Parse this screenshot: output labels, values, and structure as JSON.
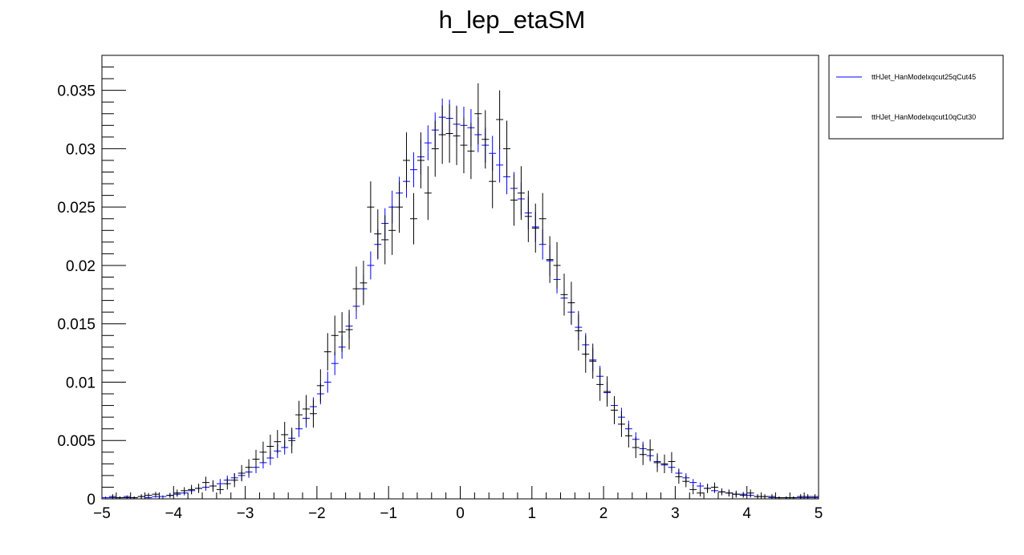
{
  "chart_data": {
    "type": "scatter",
    "title": "h_lep_etaSM",
    "xlabel": "",
    "ylabel": "",
    "xlim": [
      -5,
      5
    ],
    "ylim": [
      0,
      0.038
    ],
    "x_ticks": [
      -5,
      -4,
      -3,
      -2,
      -1,
      0,
      1,
      2,
      3,
      4,
      5
    ],
    "x_tick_labels": [
      "−5",
      "−4",
      "−3",
      "−2",
      "−1",
      "0",
      "1",
      "2",
      "3",
      "4",
      "5"
    ],
    "y_ticks": [
      0,
      0.005,
      0.01,
      0.015,
      0.02,
      0.025,
      0.03,
      0.035
    ],
    "y_tick_labels": [
      "0",
      "0.005",
      "0.01",
      "0.015",
      "0.02",
      "0.025",
      "0.03",
      "0.035"
    ],
    "bin_width": 0.1,
    "grid": false,
    "legend_position": "outside-top-right",
    "series": [
      {
        "name": "ttHJet_HanModelxqcut25qCut45",
        "color": "#0000ff",
        "x": [
          -4.95,
          -4.85,
          -4.75,
          -4.65,
          -4.55,
          -4.45,
          -4.35,
          -4.25,
          -4.15,
          -4.05,
          -3.95,
          -3.85,
          -3.75,
          -3.65,
          -3.55,
          -3.45,
          -3.35,
          -3.25,
          -3.15,
          -3.05,
          -2.95,
          -2.85,
          -2.75,
          -2.65,
          -2.55,
          -2.45,
          -2.35,
          -2.25,
          -2.15,
          -2.05,
          -1.95,
          -1.85,
          -1.75,
          -1.65,
          -1.55,
          -1.45,
          -1.35,
          -1.25,
          -1.15,
          -1.05,
          -0.95,
          -0.85,
          -0.75,
          -0.65,
          -0.55,
          -0.45,
          -0.35,
          -0.25,
          -0.15,
          -0.05,
          0.05,
          0.15,
          0.25,
          0.35,
          0.45,
          0.55,
          0.65,
          0.75,
          0.85,
          0.95,
          1.05,
          1.15,
          1.25,
          1.35,
          1.45,
          1.55,
          1.65,
          1.75,
          1.85,
          1.95,
          2.05,
          2.15,
          2.25,
          2.35,
          2.45,
          2.55,
          2.65,
          2.75,
          2.85,
          2.95,
          3.05,
          3.15,
          3.25,
          3.35,
          3.45,
          3.55,
          3.65,
          3.75,
          3.85,
          3.95,
          4.05,
          4.15,
          4.25,
          4.35,
          4.45,
          4.55,
          4.65,
          4.75,
          4.85,
          4.95
        ],
        "y": [
          0.0001,
          0.0001,
          0.0001,
          0.0002,
          0.0001,
          0.0002,
          0.0001,
          0.0002,
          0.0002,
          0.0003,
          0.0004,
          0.0005,
          0.0007,
          0.0009,
          0.001,
          0.0011,
          0.0013,
          0.0016,
          0.0018,
          0.002,
          0.0023,
          0.0027,
          0.0031,
          0.0035,
          0.0041,
          0.0044,
          0.0052,
          0.006,
          0.0069,
          0.0079,
          0.009,
          0.01,
          0.0116,
          0.013,
          0.0148,
          0.0165,
          0.018,
          0.02,
          0.0218,
          0.0236,
          0.025,
          0.0262,
          0.0272,
          0.0282,
          0.0293,
          0.0305,
          0.0316,
          0.0327,
          0.0326,
          0.0321,
          0.032,
          0.0318,
          0.0312,
          0.0303,
          0.0296,
          0.0286,
          0.0276,
          0.0266,
          0.0257,
          0.0245,
          0.0233,
          0.0218,
          0.0204,
          0.0188,
          0.0172,
          0.016,
          0.0147,
          0.0132,
          0.0119,
          0.0105,
          0.0091,
          0.008,
          0.007,
          0.006,
          0.0051,
          0.0043,
          0.0037,
          0.0032,
          0.0029,
          0.0027,
          0.0022,
          0.0018,
          0.0014,
          0.0011,
          0.0009,
          0.0007,
          0.0006,
          0.0005,
          0.0004,
          0.0004,
          0.0003,
          0.0002,
          0.0002,
          0.0001,
          0.0001,
          0.0001,
          0.0001,
          0.0001,
          0.0001,
          0.0001
        ],
        "err": [
          0.0001,
          0.0001,
          0.0001,
          0.0001,
          0.0001,
          0.0001,
          0.0001,
          0.0001,
          0.0001,
          0.0002,
          0.0002,
          0.0002,
          0.0003,
          0.0003,
          0.0003,
          0.0003,
          0.0004,
          0.0004,
          0.0004,
          0.0004,
          0.0005,
          0.0005,
          0.0005,
          0.0006,
          0.0006,
          0.0006,
          0.0007,
          0.0007,
          0.0008,
          0.0008,
          0.0009,
          0.0009,
          0.001,
          0.001,
          0.0011,
          0.0011,
          0.0012,
          0.0012,
          0.0013,
          0.0013,
          0.0014,
          0.0014,
          0.0014,
          0.0015,
          0.0015,
          0.0015,
          0.0015,
          0.0016,
          0.0016,
          0.0016,
          0.0016,
          0.0016,
          0.0015,
          0.0015,
          0.0015,
          0.0015,
          0.0015,
          0.0014,
          0.0014,
          0.0014,
          0.0013,
          0.0013,
          0.0013,
          0.0012,
          0.0012,
          0.0011,
          0.0011,
          0.001,
          0.001,
          0.0009,
          0.0009,
          0.0008,
          0.0008,
          0.0007,
          0.0006,
          0.0006,
          0.0005,
          0.0005,
          0.0005,
          0.0005,
          0.0004,
          0.0004,
          0.0003,
          0.0003,
          0.0003,
          0.0002,
          0.0002,
          0.0002,
          0.0002,
          0.0002,
          0.0002,
          0.0001,
          0.0001,
          0.0001,
          0.0001,
          0.0001,
          0.0001,
          0.0001,
          0.0001,
          0.0001
        ]
      },
      {
        "name": "ttHJet_HanModelxqcut10qCut30",
        "color": "#000000",
        "x": [
          -4.95,
          -4.85,
          -4.75,
          -4.65,
          -4.55,
          -4.45,
          -4.35,
          -4.25,
          -4.15,
          -4.05,
          -3.95,
          -3.85,
          -3.75,
          -3.65,
          -3.55,
          -3.45,
          -3.35,
          -3.25,
          -3.15,
          -3.05,
          -2.95,
          -2.85,
          -2.75,
          -2.65,
          -2.55,
          -2.45,
          -2.35,
          -2.25,
          -2.15,
          -2.05,
          -1.95,
          -1.85,
          -1.75,
          -1.65,
          -1.55,
          -1.45,
          -1.35,
          -1.25,
          -1.15,
          -1.05,
          -0.95,
          -0.85,
          -0.75,
          -0.65,
          -0.55,
          -0.45,
          -0.35,
          -0.25,
          -0.15,
          -0.05,
          0.05,
          0.15,
          0.25,
          0.35,
          0.45,
          0.55,
          0.65,
          0.75,
          0.85,
          0.95,
          1.05,
          1.15,
          1.25,
          1.35,
          1.45,
          1.55,
          1.65,
          1.75,
          1.85,
          1.95,
          2.05,
          2.15,
          2.25,
          2.35,
          2.45,
          2.55,
          2.65,
          2.75,
          2.85,
          2.95,
          3.05,
          3.15,
          3.25,
          3.35,
          3.45,
          3.55,
          3.65,
          3.75,
          3.85,
          3.95,
          4.05,
          4.15,
          4.25,
          4.35,
          4.45,
          4.55,
          4.65,
          4.75,
          4.85,
          4.95
        ],
        "y": [
          0.0,
          0.0002,
          0.0001,
          0.0001,
          0.0001,
          0.0002,
          0.0003,
          0.0004,
          0.0,
          0.0003,
          0.0005,
          0.0007,
          0.0008,
          0.0009,
          0.0014,
          0.0011,
          0.0008,
          0.0013,
          0.0016,
          0.0022,
          0.0027,
          0.0034,
          0.004,
          0.0045,
          0.0049,
          0.0055,
          0.005,
          0.0072,
          0.0077,
          0.0073,
          0.0097,
          0.0126,
          0.014,
          0.0143,
          0.0145,
          0.018,
          0.0185,
          0.025,
          0.0227,
          0.0222,
          0.023,
          0.025,
          0.029,
          0.024,
          0.029,
          0.0262,
          0.03,
          0.0312,
          0.0313,
          0.0311,
          0.0303,
          0.0298,
          0.033,
          0.0308,
          0.0272,
          0.0325,
          0.03,
          0.0256,
          0.0262,
          0.0242,
          0.0232,
          0.024,
          0.0205,
          0.02,
          0.0175,
          0.0168,
          0.0144,
          0.0124,
          0.0118,
          0.0098,
          0.0092,
          0.0076,
          0.0064,
          0.0054,
          0.0044,
          0.0038,
          0.0042,
          0.0031,
          0.003,
          0.0032,
          0.0019,
          0.0015,
          0.0008,
          0.0005,
          0.0009,
          0.001,
          0.0006,
          0.0005,
          0.0004,
          0.0003,
          0.0005,
          0.0002,
          0.0002,
          0.0002,
          0.0001,
          0.0001,
          0.0001,
          0.0002,
          0.0002,
          0.0002
        ],
        "err": [
          0.0,
          0.0002,
          0.0001,
          0.0001,
          0.0001,
          0.0002,
          0.0002,
          0.0002,
          0.0001,
          0.0002,
          0.0003,
          0.0003,
          0.0004,
          0.0004,
          0.0005,
          0.0005,
          0.0004,
          0.0005,
          0.0006,
          0.0007,
          0.0007,
          0.0008,
          0.0009,
          0.001,
          0.001,
          0.0011,
          0.0011,
          0.0012,
          0.0012,
          0.0012,
          0.0014,
          0.0016,
          0.0017,
          0.0017,
          0.0017,
          0.0019,
          0.0019,
          0.0022,
          0.0021,
          0.0021,
          0.0021,
          0.0022,
          0.0024,
          0.0022,
          0.0024,
          0.0023,
          0.0024,
          0.0025,
          0.0025,
          0.0025,
          0.0024,
          0.0024,
          0.0026,
          0.0025,
          0.0023,
          0.0025,
          0.0024,
          0.0022,
          0.0023,
          0.0022,
          0.0021,
          0.0022,
          0.002,
          0.002,
          0.0018,
          0.0018,
          0.0017,
          0.0016,
          0.0015,
          0.0014,
          0.0013,
          0.0012,
          0.0011,
          0.001,
          0.0009,
          0.0009,
          0.0009,
          0.0008,
          0.0008,
          0.0008,
          0.0006,
          0.0005,
          0.0004,
          0.0003,
          0.0004,
          0.0004,
          0.0003,
          0.0003,
          0.0003,
          0.0002,
          0.0003,
          0.0002,
          0.0002,
          0.0002,
          0.0001,
          0.0001,
          0.0001,
          0.0002,
          0.0002,
          0.0002
        ]
      }
    ]
  }
}
